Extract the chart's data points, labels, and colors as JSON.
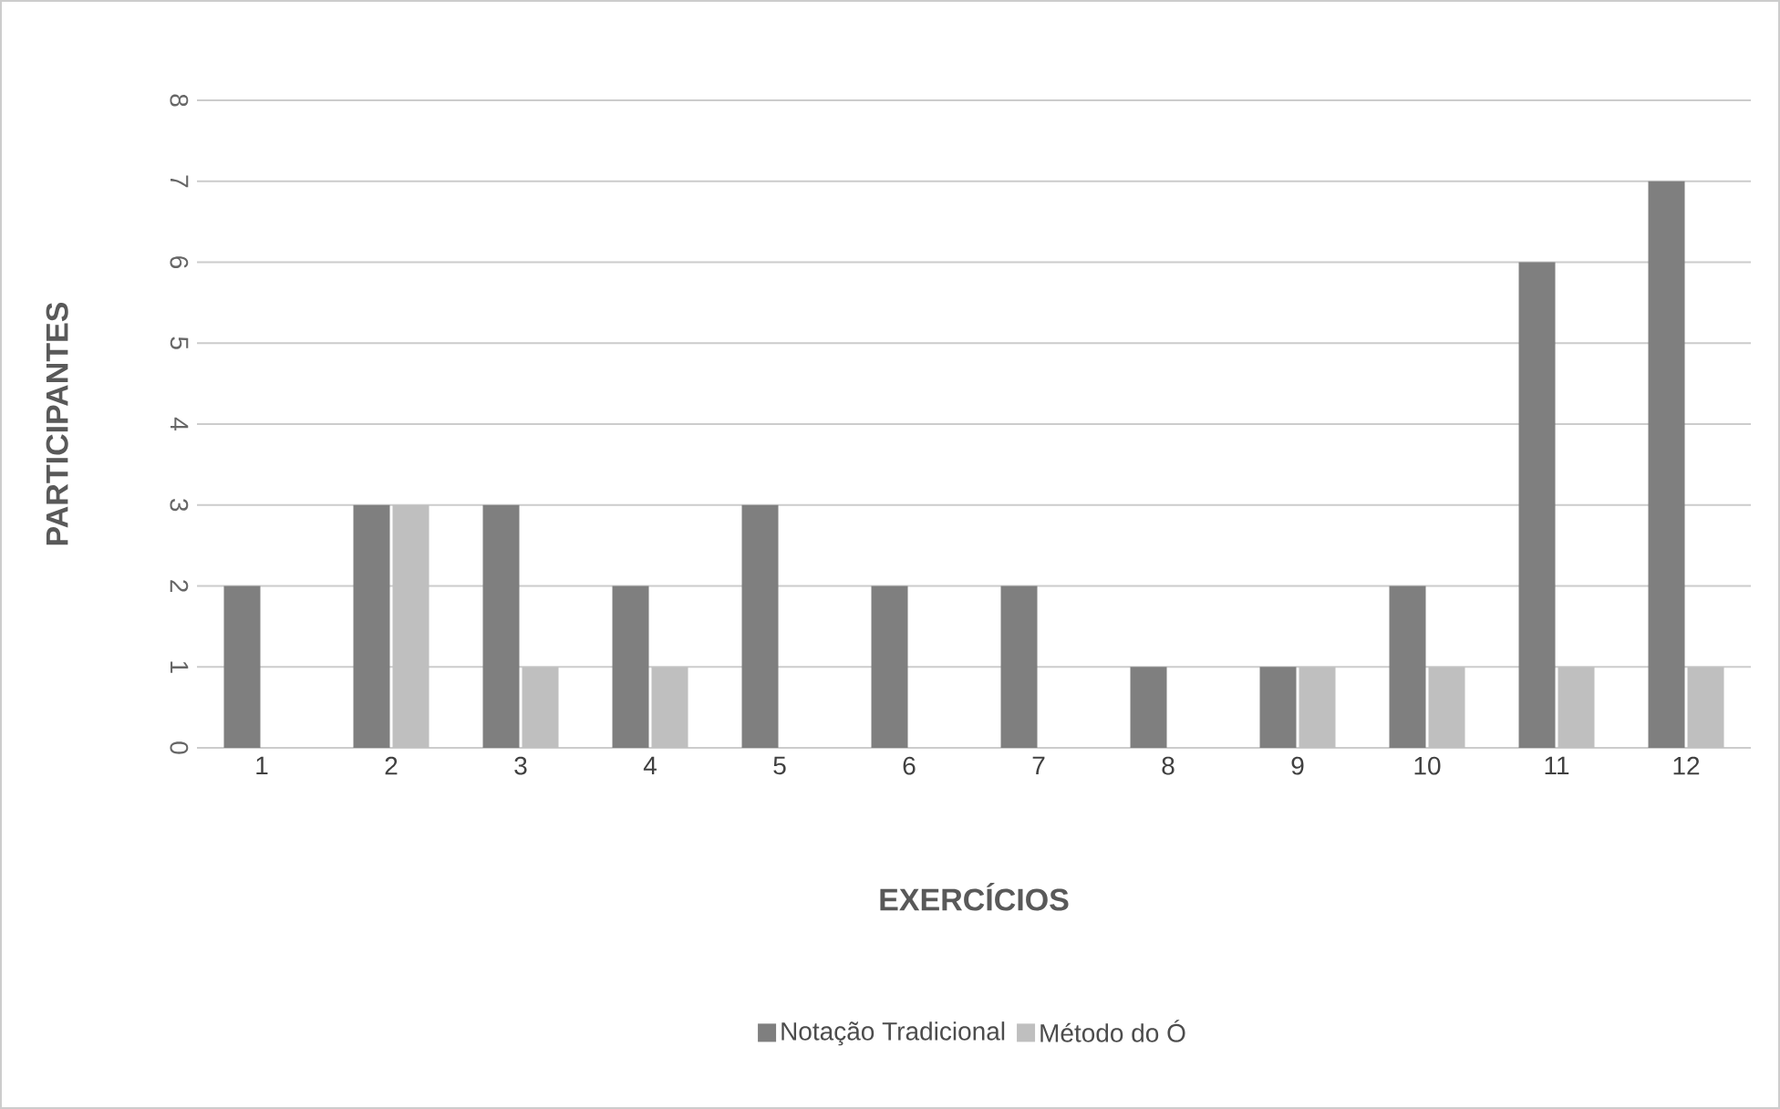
{
  "chart_data": {
    "type": "bar",
    "xlabel": "EXERCÍCIOS",
    "ylabel": "PARTICIPANTES",
    "categories": [
      "1",
      "2",
      "3",
      "4",
      "5",
      "6",
      "7",
      "8",
      "9",
      "10",
      "11",
      "12"
    ],
    "series": [
      {
        "name": "Notação Tradicional",
        "color": "#7f7f7f",
        "values": [
          2,
          3,
          3,
          2,
          3,
          2,
          2,
          1,
          1,
          2,
          6,
          7
        ]
      },
      {
        "name": "Método do Ó",
        "color": "#bfbfbf",
        "values": [
          0,
          3,
          1,
          1,
          0,
          0,
          0,
          0,
          1,
          1,
          1,
          1
        ]
      }
    ],
    "ylim": [
      0,
      8
    ],
    "yticks": [
      0,
      1,
      2,
      3,
      4,
      5,
      6,
      7,
      8
    ],
    "grid": "y",
    "legend": "bottom"
  }
}
